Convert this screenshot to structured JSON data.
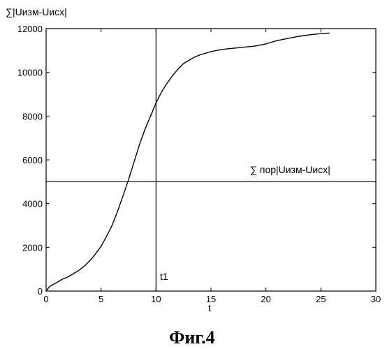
{
  "chart_data": {
    "type": "line",
    "ylabel": "∑|Uизм-Uисх|",
    "xlabel": "t",
    "xlim": [
      0,
      30
    ],
    "ylim": [
      0,
      12000
    ],
    "x_ticks": [
      0,
      5,
      10,
      15,
      20,
      25,
      30
    ],
    "y_ticks": [
      0,
      2000,
      4000,
      6000,
      8000,
      10000,
      12000
    ],
    "grid": false,
    "series": [
      {
        "x": [
          0,
          0.3,
          1,
          1.5,
          2,
          2.5,
          3,
          3.5,
          4,
          4.5,
          5,
          5.5,
          6,
          6.5,
          7,
          7.5,
          8,
          8.5,
          9,
          9.5,
          10,
          10.5,
          11,
          11.5,
          12,
          12.5,
          13,
          13.5,
          14,
          15,
          16,
          17,
          18,
          19,
          20,
          21,
          22,
          23,
          24,
          25,
          25.8
        ],
        "y": [
          0,
          200,
          400,
          550,
          650,
          800,
          950,
          1150,
          1400,
          1700,
          2050,
          2500,
          3000,
          3650,
          4350,
          5100,
          5900,
          6700,
          7400,
          8000,
          8600,
          9100,
          9500,
          9850,
          10150,
          10400,
          10550,
          10700,
          10800,
          10950,
          11050,
          11100,
          11150,
          11200,
          11300,
          11450,
          11550,
          11650,
          11720,
          11770,
          11800
        ]
      }
    ],
    "threshold": {
      "y": 5000,
      "label": "∑ пор|Uизм-Uисх|"
    },
    "marker": {
      "x": 10,
      "label": "t1"
    }
  },
  "caption": "Фиг.4"
}
